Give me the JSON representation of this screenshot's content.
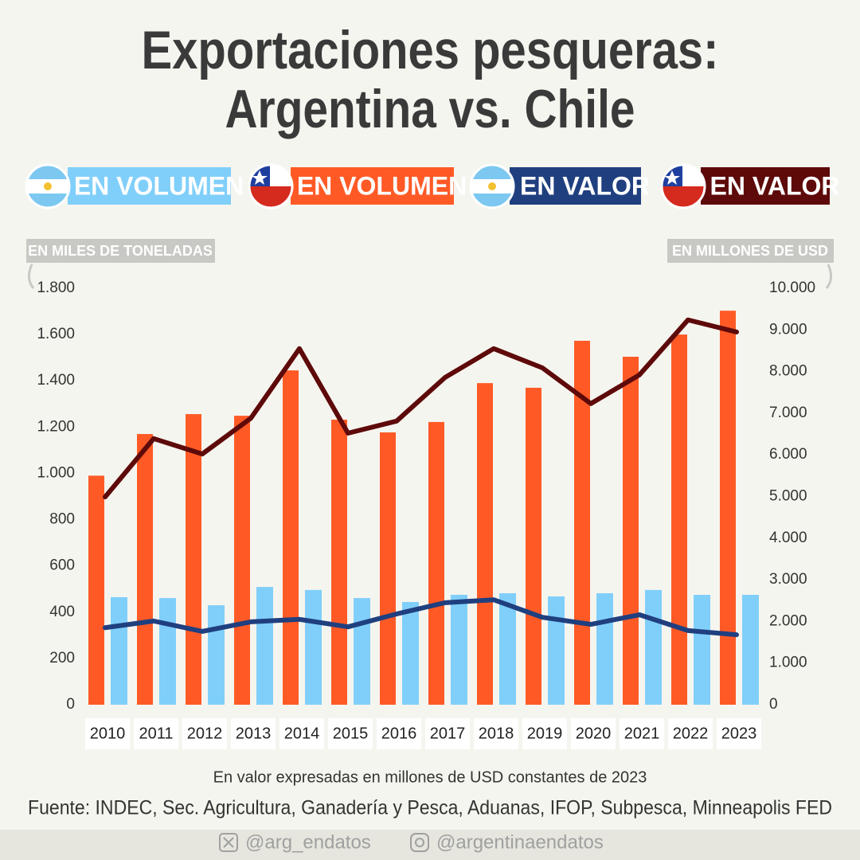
{
  "chart_data": {
    "type": "bar",
    "title": [
      "Exportaciones pesqueras:",
      "Argentina vs. Chile"
    ],
    "categories": [
      "2010",
      "2011",
      "2012",
      "2013",
      "2014",
      "2015",
      "2016",
      "2017",
      "2018",
      "2019",
      "2020",
      "2021",
      "2022",
      "2023"
    ],
    "series": [
      {
        "name": "EN VOLUMEN",
        "type": "bar",
        "color": "#80cffa",
        "axis": "y",
        "values": [
          465,
          461,
          430,
          509,
          496,
          461,
          444,
          475,
          482,
          468,
          482,
          496,
          475,
          475
        ]
      },
      {
        "name": "EN VOLUMEN",
        "type": "bar",
        "color": "#ff5a26",
        "axis": "y",
        "values": [
          990,
          1170,
          1256,
          1249,
          1445,
          1232,
          1177,
          1222,
          1390,
          1370,
          1573,
          1504,
          1600,
          1703
        ]
      },
      {
        "name": "EN VALOR",
        "type": "line",
        "color": "#1f3f7f",
        "axis": "y2",
        "values": [
          1850,
          2010,
          1760,
          1990,
          2050,
          1870,
          2180,
          2450,
          2520,
          2100,
          1930,
          2160,
          1780,
          1680
        ]
      },
      {
        "name": "EN VALOR",
        "type": "line",
        "color": "#5e0a0a",
        "axis": "y2",
        "values": [
          4990,
          6390,
          6020,
          6880,
          8550,
          6520,
          6810,
          7860,
          8550,
          8090,
          7230,
          7920,
          9240,
          8950
        ]
      }
    ],
    "ylabel": "EN MILES DE TONELADAS",
    "y2label": "EN MILLONES DE USD",
    "ylim": [
      0,
      1800
    ],
    "yticks": [
      0,
      200,
      400,
      600,
      800,
      {
        "value": 1000,
        "label": "1.000"
      },
      {
        "value": 1200,
        "label": "1.200"
      },
      {
        "value": 1400,
        "label": "1.400"
      },
      {
        "value": 1600,
        "label": "1.600"
      },
      {
        "value": 1800,
        "label": "1.800"
      }
    ],
    "y2lim": [
      0,
      10000
    ],
    "y2ticks": [
      0,
      {
        "value": 1000,
        "label": "1.000"
      },
      {
        "value": 2000,
        "label": "2.000"
      },
      {
        "value": 3000,
        "label": "3.000"
      },
      {
        "value": 4000,
        "label": "4.000"
      },
      {
        "value": 5000,
        "label": "5.000"
      },
      {
        "value": 6000,
        "label": "6.000"
      },
      {
        "value": 7000,
        "label": "7.000"
      },
      {
        "value": 8000,
        "label": "8.000"
      },
      {
        "value": 9000,
        "label": "9.000"
      },
      {
        "value": 10000,
        "label": "10.000"
      }
    ],
    "note": "En valor expresadas en millones de USD constantes de 2023",
    "source": "Fuente: INDEC, Sec. Agricultura, Ganadería y Pesca, Aduanas, IFOP, Subpesca, Minneapolis FED",
    "handles": [
      "@arg_endatos",
      "@argentinaendatos"
    ]
  }
}
